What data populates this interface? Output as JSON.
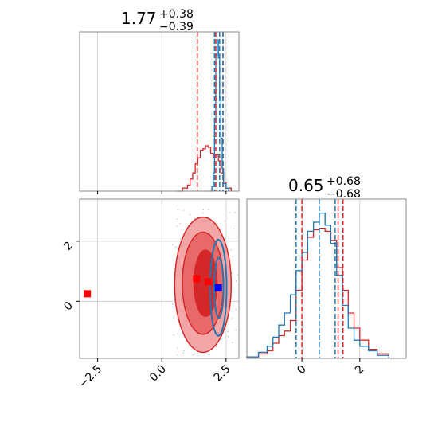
{
  "colors": {
    "red": "#d62728",
    "blue": "#1f77b4",
    "grid": "#c8c8c8",
    "axis": "#888888",
    "marker_red": "#ff0000",
    "marker_blue": "#0000ff",
    "fill_light": "#f4a6a6",
    "fill_mid": "#e8696a",
    "fill_dark": "#d62728"
  },
  "chart_data": [
    {
      "type": "step-histogram",
      "panel": "top-left",
      "title": {
        "value": "1.77",
        "plus": "+0.38",
        "minus": "−0.39"
      },
      "xlim": [
        -3.2,
        3.0
      ],
      "grid": true,
      "quantile_lines": {
        "red": [
          1.38,
          2.1,
          2.38
        ],
        "blue": [
          2.05,
          2.25,
          2.38
        ]
      },
      "series": [
        {
          "color": "red",
          "x": [
            0.6,
            0.8,
            1.0,
            1.1,
            1.2,
            1.3,
            1.4,
            1.5,
            1.6,
            1.7,
            1.8,
            1.9,
            2.0,
            2.1,
            2.2,
            2.3,
            2.4,
            2.5,
            2.7
          ],
          "y": [
            0.0,
            0.02,
            0.04,
            0.08,
            0.12,
            0.18,
            0.22,
            0.27,
            0.28,
            0.3,
            0.29,
            0.25,
            0.22,
            0.24,
            0.2,
            0.12,
            0.06,
            0.02,
            0.0
          ]
        },
        {
          "color": "blue",
          "x": [
            1.85,
            1.95,
            2.0,
            2.05,
            2.1,
            2.15,
            2.2,
            2.25,
            2.3,
            2.35,
            2.4,
            2.5,
            2.6
          ],
          "y": [
            0.0,
            0.03,
            0.12,
            0.45,
            0.9,
            1.0,
            0.88,
            0.62,
            0.35,
            0.15,
            0.05,
            0.02,
            0.0
          ]
        }
      ]
    },
    {
      "type": "contour",
      "panel": "bottom-left",
      "xlim": [
        -3.2,
        3.0
      ],
      "ylim": [
        -1.9,
        3.4
      ],
      "xticks": [
        -2.5,
        0.0,
        2.5
      ],
      "xtick_labels": [
        "−2.5",
        "0.0",
        "2.5"
      ],
      "yticks": [
        0,
        2
      ],
      "ytick_labels": [
        "0",
        "2"
      ],
      "grid": true,
      "red_contours": [
        {
          "cx": 1.6,
          "cy": 0.55,
          "rx": 1.1,
          "ry": 2.25,
          "level": "outer"
        },
        {
          "cx": 1.6,
          "cy": 0.6,
          "rx": 0.8,
          "ry": 1.7,
          "level": "mid"
        },
        {
          "cx": 1.7,
          "cy": 0.6,
          "rx": 0.45,
          "ry": 1.1,
          "level": "inner"
        }
      ],
      "blue_contours": [
        {
          "cx": 2.2,
          "cy": 0.45,
          "rx": 0.32,
          "ry": 1.6
        },
        {
          "cx": 2.22,
          "cy": 0.45,
          "rx": 0.18,
          "ry": 1.0
        }
      ],
      "markers": [
        {
          "x": -2.9,
          "y": 0.25,
          "color": "red"
        },
        {
          "x": 1.35,
          "y": 0.75,
          "color": "red"
        },
        {
          "x": 1.8,
          "y": 0.65,
          "color": "red"
        },
        {
          "x": 2.2,
          "y": 0.45,
          "color": "blue"
        }
      ]
    },
    {
      "type": "step-histogram",
      "panel": "bottom-right",
      "title": {
        "value": "0.65",
        "plus": "+0.68",
        "minus": "−0.68"
      },
      "xlim": [
        -1.9,
        3.6
      ],
      "xticks": [
        0,
        2
      ],
      "xtick_labels": [
        "0",
        "2"
      ],
      "grid": true,
      "quantile_lines": {
        "red": [
          0.0,
          1.25,
          1.42
        ],
        "blue": [
          -0.2,
          0.6,
          1.15
        ]
      },
      "series": [
        {
          "color": "red",
          "x": [
            -1.9,
            -1.5,
            -1.2,
            -1.0,
            -0.8,
            -0.6,
            -0.4,
            -0.2,
            0.0,
            0.2,
            0.4,
            0.6,
            0.8,
            1.0,
            1.2,
            1.4,
            1.6,
            1.8,
            2.0,
            2.3,
            2.6,
            3.0
          ],
          "y": [
            0.01,
            0.03,
            0.05,
            0.1,
            0.15,
            0.18,
            0.25,
            0.45,
            0.65,
            0.8,
            0.85,
            0.86,
            0.84,
            0.78,
            0.6,
            0.45,
            0.3,
            0.2,
            0.12,
            0.06,
            0.03,
            0.01
          ]
        },
        {
          "color": "blue",
          "x": [
            -1.9,
            -1.5,
            -1.2,
            -1.0,
            -0.8,
            -0.6,
            -0.4,
            -0.2,
            0.0,
            0.2,
            0.4,
            0.6,
            0.8,
            1.0,
            1.2,
            1.4,
            1.6,
            1.8,
            2.0,
            2.3,
            2.6,
            3.0
          ],
          "y": [
            0.01,
            0.04,
            0.08,
            0.14,
            0.22,
            0.3,
            0.42,
            0.58,
            0.7,
            0.84,
            0.9,
            0.96,
            0.88,
            0.76,
            0.55,
            0.35,
            0.2,
            0.12,
            0.08,
            0.05,
            0.02,
            0.01
          ]
        }
      ]
    }
  ]
}
